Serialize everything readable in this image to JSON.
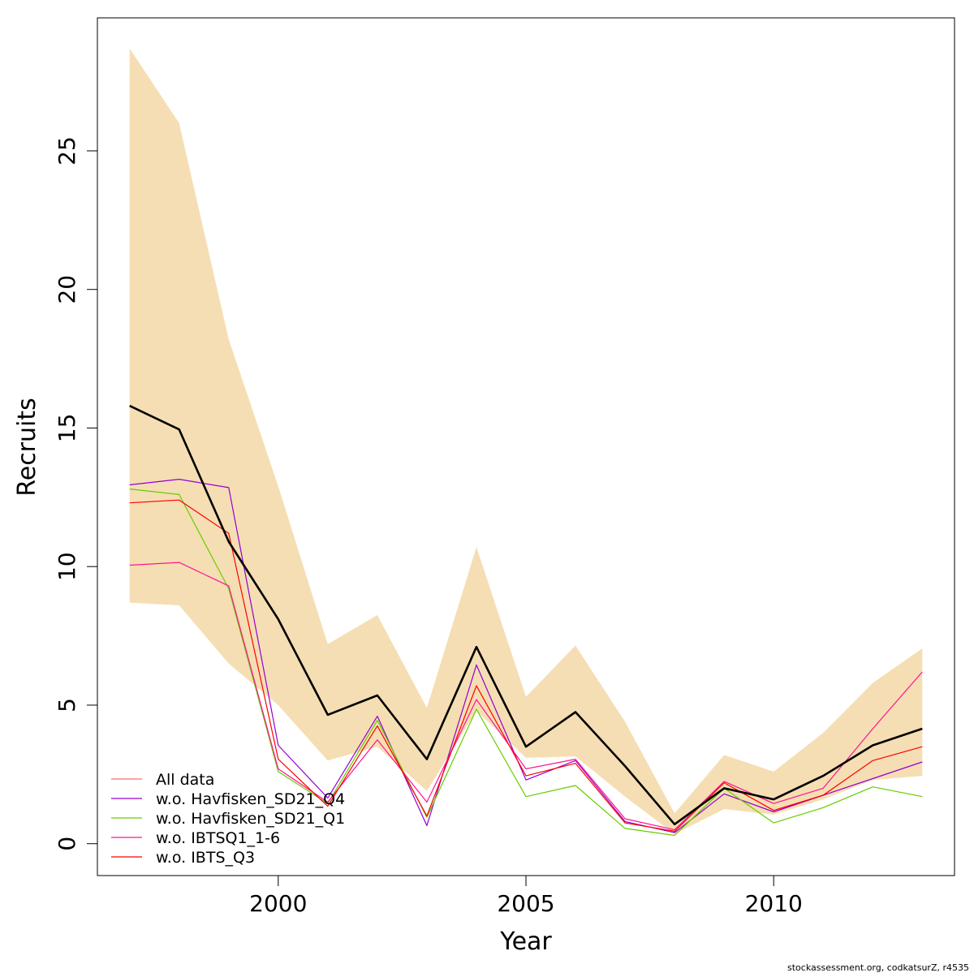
{
  "chart_data": {
    "type": "line",
    "xlabel": "Year",
    "ylabel": "Recruits",
    "xlim": [
      1996.35,
      2013.65
    ],
    "ylim": [
      -1.15,
      29.8
    ],
    "x_ticks": [
      2000,
      2005,
      2010
    ],
    "y_ticks": [
      0,
      5,
      10,
      15,
      20,
      25
    ],
    "x": [
      1997,
      1998,
      1999,
      2000,
      2001,
      2002,
      2003,
      2004,
      2005,
      2006,
      2007,
      2008,
      2009,
      2010,
      2011,
      2012,
      2013
    ],
    "confidence_band": {
      "color": "#f5deb3",
      "upper": [
        28.7,
        26.0,
        18.2,
        12.9,
        7.2,
        8.25,
        4.9,
        10.7,
        5.3,
        7.15,
        4.4,
        1.1,
        3.2,
        2.6,
        4.0,
        5.8,
        7.05
      ],
      "lower": [
        8.7,
        8.6,
        6.5,
        5.0,
        3.0,
        3.5,
        1.9,
        4.8,
        3.1,
        3.15,
        1.7,
        0.35,
        1.25,
        1.05,
        1.6,
        2.3,
        2.45
      ]
    },
    "series": [
      {
        "name": "All data",
        "color": "#000000",
        "width": 2.6,
        "legend_color": "#ff0000",
        "values": [
          15.8,
          14.95,
          10.9,
          8.1,
          4.65,
          5.35,
          3.05,
          7.1,
          3.5,
          4.75,
          2.8,
          0.7,
          2.0,
          1.6,
          2.45,
          3.55,
          4.15
        ]
      },
      {
        "name": "w.o. Havfisken_SD21_Q4",
        "color": "#9400d3",
        "width": 1.2,
        "values": [
          12.95,
          13.15,
          12.85,
          3.55,
          1.65,
          4.6,
          0.65,
          6.45,
          2.3,
          3.0,
          0.8,
          0.4,
          1.8,
          1.15,
          1.75,
          2.35,
          2.95
        ]
      },
      {
        "name": "w.o. Havfisken_SD21_Q1",
        "color": "#66cd00",
        "width": 1.2,
        "values": [
          12.8,
          12.6,
          9.2,
          2.6,
          1.45,
          4.45,
          0.95,
          4.85,
          1.7,
          2.1,
          0.55,
          0.3,
          2.0,
          0.75,
          1.3,
          2.05,
          1.7
        ]
      },
      {
        "name": "w.o. IBTSQ1_1-6",
        "color": "#ff1493",
        "width": 1.2,
        "values": [
          10.05,
          10.15,
          9.3,
          2.7,
          1.5,
          3.75,
          1.5,
          5.2,
          2.7,
          3.05,
          0.9,
          0.5,
          2.25,
          1.45,
          2.0,
          4.15,
          6.2
        ]
      },
      {
        "name": "w.o. IBTS_Q3",
        "color": "#ff0000",
        "width": 1.2,
        "values": [
          12.3,
          12.4,
          11.2,
          3.05,
          1.35,
          4.25,
          1.0,
          5.7,
          2.45,
          2.9,
          0.75,
          0.45,
          2.2,
          1.2,
          1.75,
          3.0,
          3.5
        ]
      }
    ],
    "legend": {
      "position": "bottom-left",
      "entries": [
        {
          "label": "All data",
          "color": "#ff6a6a"
        },
        {
          "label": "w.o. Havfisken_SD21_Q4",
          "color": "#9400d3"
        },
        {
          "label": "w.o. Havfisken_SD21_Q1",
          "color": "#66cd00"
        },
        {
          "label": "w.o. IBTSQ1_1-6",
          "color": "#ff1493"
        },
        {
          "label": "w.o. IBTS_Q3",
          "color": "#ff0000"
        }
      ]
    },
    "grid": false
  },
  "footer": "stockassessment.org, codkatsurZ, r4535"
}
